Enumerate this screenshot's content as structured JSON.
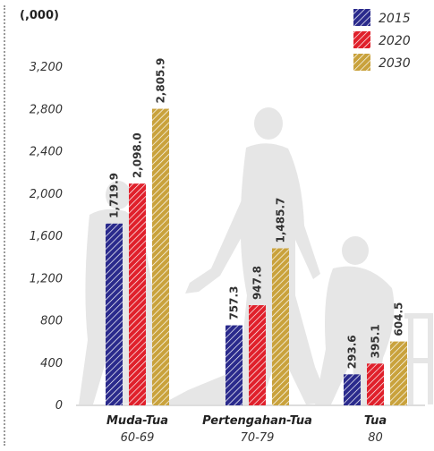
{
  "chart_data": {
    "type": "bar",
    "unit_label": "(,000)",
    "categories": [
      {
        "name": "Muda-Tua",
        "range": "60-69"
      },
      {
        "name": "Pertengahan-Tua",
        "range": "70-79"
      },
      {
        "name": "Tua",
        "range": "80"
      }
    ],
    "series": [
      {
        "name": "2015",
        "color": "#2a2a8c",
        "values": [
          1719.9,
          757.3,
          293.6
        ],
        "labels": [
          "1,719.9",
          "757.3",
          "293.6"
        ]
      },
      {
        "name": "2020",
        "color": "#e0202b",
        "values": [
          2098.0,
          947.8,
          395.1
        ],
        "labels": [
          "2,098.0",
          "947.8",
          "395.1"
        ]
      },
      {
        "name": "2030",
        "color": "#c9a23c",
        "values": [
          2805.9,
          1485.7,
          604.5
        ],
        "labels": [
          "2,805.9",
          "1,485.7",
          "604.5"
        ]
      }
    ],
    "yticks": [
      {
        "value": 0,
        "label": "0"
      },
      {
        "value": 400,
        "label": "400"
      },
      {
        "value": 800,
        "label": "800"
      },
      {
        "value": 1200,
        "label": "1,200"
      },
      {
        "value": 1600,
        "label": "1,600"
      },
      {
        "value": 2000,
        "label": "2,000"
      },
      {
        "value": 2400,
        "label": "2,400"
      },
      {
        "value": 2800,
        "label": "2,800"
      },
      {
        "value": 3200,
        "label": "3,200"
      }
    ],
    "ylim": [
      0,
      3200
    ],
    "grid": false,
    "legend": "top-right",
    "legend_orientation": "vertical",
    "bar_fill": "diagonal-hatch"
  }
}
